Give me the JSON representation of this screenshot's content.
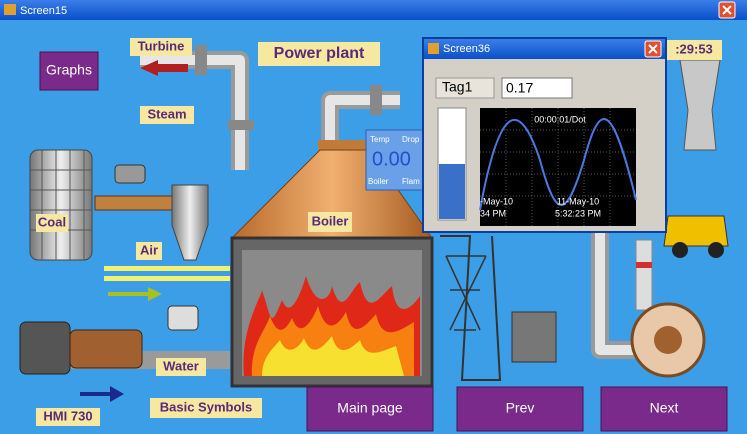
{
  "window": {
    "title": "Screen15",
    "clock": ":29:53"
  },
  "labels": {
    "turbine": "Turbine",
    "power_plant": "Power plant",
    "steam": "Steam",
    "coal": "Coal",
    "air": "Air",
    "boiler": "Boiler",
    "water": "Water",
    "hmi": "HMI 730",
    "basic_symbols": "Basic Symbols"
  },
  "buttons": {
    "graphs": "Graphs",
    "main_page": "Main page",
    "prev": "Prev",
    "next": "Next"
  },
  "boiler_display": {
    "headers": [
      "Temp",
      "Drop"
    ],
    "value": "0.00",
    "footers": [
      "Boiler",
      "Flam"
    ]
  },
  "popup": {
    "title": "Screen36",
    "tag_label": "Tag1",
    "tag_value": "0.17",
    "chart_caption": "00:00:01/Dot",
    "x_labels": [
      [
        "-May-10",
        "34 PM"
      ],
      [
        "11-May-10",
        "5:32:23 PM"
      ]
    ]
  }
}
